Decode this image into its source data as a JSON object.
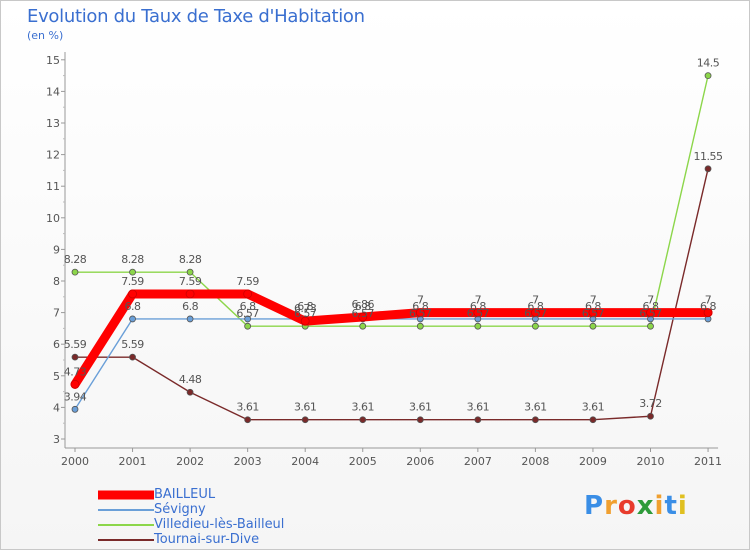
{
  "header": {
    "title": "Evolution du Taux de Taxe d'Habitation",
    "unit": "(en %)"
  },
  "logo": {
    "text": "Proxiti",
    "letters": [
      "P",
      "r",
      "o",
      "x",
      "i",
      "t",
      "i"
    ],
    "colors": [
      "#3a8ee6",
      "#f0a030",
      "#e83c2c",
      "#2e9b3a",
      "#f0a030",
      "#3a8ee6",
      "#e0c020"
    ]
  },
  "chart_data": {
    "type": "line",
    "title": "Evolution du Taux de Taxe d'Habitation",
    "ylabel": "(en %)",
    "xlabel": "",
    "ylim": [
      3,
      15
    ],
    "yticks": [
      3,
      4,
      5,
      6,
      7,
      8,
      9,
      10,
      11,
      12,
      13,
      14,
      15
    ],
    "grid": false,
    "legend_position": "bottom-left",
    "categories": [
      "2000",
      "2001",
      "2002",
      "2003",
      "2004",
      "2005",
      "2006",
      "2007",
      "2008",
      "2009",
      "2010",
      "2011"
    ],
    "series": [
      {
        "name": "Tournai-sur-Dive",
        "color": "#7a2a2a",
        "values": [
          5.59,
          5.59,
          4.48,
          3.61,
          3.61,
          3.61,
          3.61,
          3.61,
          3.61,
          3.61,
          3.72,
          11.55
        ],
        "labels": [
          "5.59",
          "5.59",
          "4.48",
          "3.61",
          "3.61",
          "3.61",
          "3.61",
          "3.61",
          "3.61",
          "3.61",
          "3.72",
          "11.55"
        ]
      },
      {
        "name": "Villedieu-lès-Bailleul",
        "color": "#8cd64a",
        "values": [
          8.28,
          8.28,
          8.28,
          6.57,
          6.57,
          6.57,
          6.57,
          6.57,
          6.57,
          6.57,
          6.57,
          14.5
        ],
        "labels": [
          "8.28",
          "8.28",
          "8.28",
          "6.57",
          "6.57",
          "6.57",
          "6.57",
          "6.57",
          "6.57",
          "6.57",
          "6.57",
          "14.5"
        ]
      },
      {
        "name": "Sévigny",
        "color": "#6a9fd8",
        "values": [
          3.94,
          6.8,
          6.8,
          6.8,
          6.8,
          6.8,
          6.8,
          6.8,
          6.8,
          6.8,
          6.8,
          6.8
        ],
        "labels": [
          "3.94",
          "6.8",
          "6.8",
          "6.8",
          "6.8",
          "6.8",
          "6.8",
          "6.8",
          "6.8",
          "6.8",
          "6.8",
          "6.8"
        ]
      },
      {
        "name": "BAILLEUL",
        "color": "#ff0000",
        "values": [
          4.73,
          7.59,
          7.59,
          7.59,
          6.73,
          6.86,
          7,
          7,
          7,
          7,
          7,
          7
        ],
        "labels": [
          "4.73",
          "7.59",
          "7.59",
          "7.59",
          "6.73",
          "6.86",
          "7",
          "7",
          "7",
          "7",
          "7",
          "7"
        ]
      }
    ],
    "legend_order": [
      "BAILLEUL",
      "Sévigny",
      "Villedieu-lès-Bailleul",
      "Tournai-sur-Dive"
    ]
  }
}
